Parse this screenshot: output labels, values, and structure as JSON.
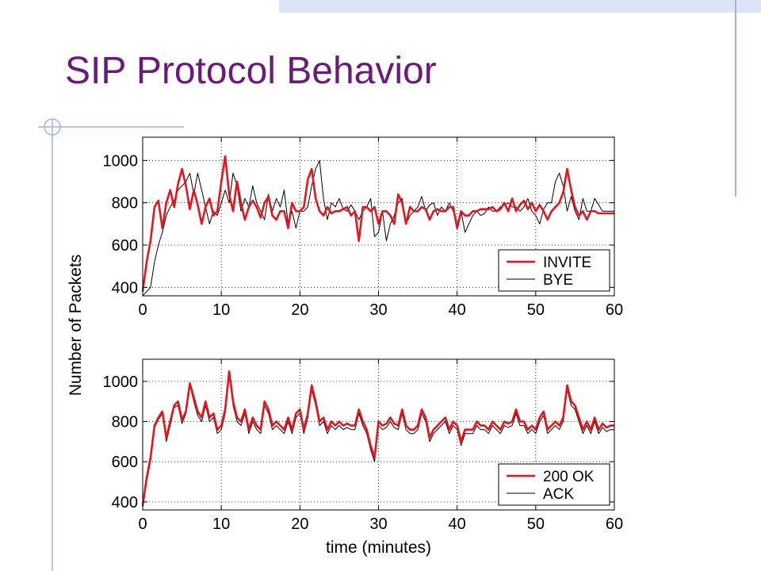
{
  "slide": {
    "title": "SIP Protocol Behavior",
    "colors": {
      "title": "#6b1a7a",
      "decor_bar": "#dde4f6",
      "decor_line": "#9fb4e6"
    }
  },
  "chart_data": [
    {
      "type": "line",
      "xlabel": "",
      "ylabel": "Number of Packets",
      "xlim": [
        0,
        60
      ],
      "ylim": [
        360,
        1110
      ],
      "xticks": [
        0,
        10,
        20,
        30,
        40,
        50,
        60
      ],
      "yticks": [
        400,
        600,
        800,
        1000
      ],
      "grid": true,
      "legend_position": "bottom-right",
      "series": [
        {
          "name": "INVITE",
          "color": "#e8141c",
          "x": [
            0,
            0.5,
            1,
            1.5,
            2,
            2.5,
            3,
            3.5,
            4,
            4.5,
            5,
            5.5,
            6,
            6.5,
            7,
            7.5,
            8,
            8.5,
            9,
            9.5,
            10,
            10.5,
            11,
            11.5,
            12,
            12.5,
            13,
            13.5,
            14,
            14.5,
            15,
            15.5,
            16,
            16.5,
            17,
            17.5,
            18,
            18.5,
            19,
            19.5,
            20,
            20.5,
            21,
            21.5,
            22,
            22.5,
            23,
            23.5,
            24,
            24.5,
            25,
            25.5,
            26,
            26.5,
            27,
            27.5,
            28,
            28.5,
            29,
            29.5,
            30,
            30.5,
            31,
            31.5,
            32,
            32.5,
            33,
            33.5,
            34,
            34.5,
            35,
            35.5,
            36,
            36.5,
            37,
            37.5,
            38,
            38.5,
            39,
            39.5,
            40,
            40.5,
            41,
            41.5,
            42,
            42.5,
            43,
            43.5,
            44,
            44.5,
            45,
            45.5,
            46,
            46.5,
            47,
            47.5,
            48,
            48.5,
            49,
            49.5,
            50,
            50.5,
            51,
            51.5,
            52,
            52.5,
            53,
            53.5,
            54,
            54.5,
            55,
            55.5,
            56,
            56.5,
            57,
            57.5,
            58,
            58.5,
            59,
            59.5,
            60
          ],
          "y": [
            380,
            520,
            620,
            780,
            810,
            680,
            800,
            860,
            780,
            890,
            960,
            880,
            770,
            860,
            790,
            700,
            780,
            820,
            740,
            760,
            900,
            1020,
            840,
            760,
            900,
            800,
            720,
            780,
            810,
            780,
            730,
            800,
            830,
            740,
            720,
            760,
            760,
            680,
            800,
            760,
            760,
            780,
            910,
            960,
            820,
            760,
            740,
            780,
            750,
            760,
            760,
            770,
            780,
            740,
            760,
            620,
            780,
            780,
            760,
            780,
            700,
            760,
            760,
            740,
            700,
            840,
            800,
            700,
            780,
            760,
            760,
            780,
            770,
            720,
            760,
            770,
            760,
            760,
            780,
            780,
            680,
            760,
            740,
            740,
            760,
            760,
            770,
            770,
            770,
            780,
            760,
            770,
            800,
            760,
            820,
            760,
            790,
            810,
            770,
            800,
            760,
            790,
            760,
            720,
            760,
            780,
            800,
            850,
            960,
            860,
            780,
            740,
            760,
            720,
            760,
            760,
            750,
            750,
            750,
            750,
            750
          ]
        },
        {
          "name": "BYE",
          "color": "#000000",
          "x": [
            0,
            0.5,
            1,
            1.5,
            2,
            2.5,
            3,
            3.5,
            4,
            4.5,
            5,
            5.5,
            6,
            6.5,
            7,
            7.5,
            8,
            8.5,
            9,
            9.5,
            10,
            10.5,
            11,
            11.5,
            12,
            12.5,
            13,
            13.5,
            14,
            14.5,
            15,
            15.5,
            16,
            16.5,
            17,
            17.5,
            18,
            18.5,
            19,
            19.5,
            20,
            20.5,
            21,
            21.5,
            22,
            22.5,
            23,
            23.5,
            24,
            24.5,
            25,
            25.5,
            26,
            26.5,
            27,
            27.5,
            28,
            28.5,
            29,
            29.5,
            30,
            30.5,
            31,
            31.5,
            32,
            32.5,
            33,
            33.5,
            34,
            34.5,
            35,
            35.5,
            36,
            36.5,
            37,
            37.5,
            38,
            38.5,
            39,
            39.5,
            40,
            40.5,
            41,
            41.5,
            42,
            42.5,
            43,
            43.5,
            44,
            44.5,
            45,
            45.5,
            46,
            46.5,
            47,
            47.5,
            48,
            48.5,
            49,
            49.5,
            50,
            50.5,
            51,
            51.5,
            52,
            52.5,
            53,
            53.5,
            54,
            54.5,
            55,
            55.5,
            56,
            56.5,
            57,
            57.5,
            58,
            58.5,
            59,
            59.5,
            60
          ],
          "y": [
            360,
            380,
            400,
            520,
            600,
            660,
            740,
            780,
            810,
            860,
            880,
            900,
            940,
            840,
            940,
            860,
            780,
            700,
            760,
            740,
            800,
            860,
            800,
            940,
            880,
            760,
            820,
            780,
            880,
            800,
            760,
            720,
            840,
            760,
            820,
            780,
            860,
            700,
            760,
            680,
            760,
            760,
            780,
            880,
            960,
            1000,
            820,
            720,
            800,
            780,
            820,
            770,
            760,
            790,
            760,
            720,
            760,
            780,
            820,
            640,
            660,
            760,
            620,
            700,
            740,
            800,
            820,
            700,
            740,
            760,
            780,
            830,
            760,
            790,
            800,
            740,
            780,
            760,
            800,
            760,
            700,
            760,
            660,
            700,
            740,
            760,
            740,
            750,
            780,
            760,
            760,
            780,
            790,
            800,
            780,
            780,
            760,
            780,
            820,
            760,
            740,
            700,
            770,
            800,
            800,
            900,
            940,
            880,
            760,
            830,
            760,
            720,
            820,
            760,
            760,
            820,
            790,
            760,
            760,
            760,
            760
          ]
        }
      ]
    },
    {
      "type": "line",
      "xlabel": "time (minutes)",
      "ylabel": "",
      "xlim": [
        0,
        60
      ],
      "ylim": [
        360,
        1110
      ],
      "xticks": [
        0,
        10,
        20,
        30,
        40,
        50,
        60
      ],
      "yticks": [
        400,
        600,
        800,
        1000
      ],
      "grid": true,
      "legend_position": "bottom-right",
      "series": [
        {
          "name": "200 OK",
          "color": "#e8141c",
          "x": [
            0,
            0.5,
            1,
            1.5,
            2,
            2.5,
            3,
            3.5,
            4,
            4.5,
            5,
            5.5,
            6,
            6.5,
            7,
            7.5,
            8,
            8.5,
            9,
            9.5,
            10,
            10.5,
            11,
            11.5,
            12,
            12.5,
            13,
            13.5,
            14,
            14.5,
            15,
            15.5,
            16,
            16.5,
            17,
            17.5,
            18,
            18.5,
            19,
            19.5,
            20,
            20.5,
            21,
            21.5,
            22,
            22.5,
            23,
            23.5,
            24,
            24.5,
            25,
            25.5,
            26,
            26.5,
            27,
            27.5,
            28,
            28.5,
            29,
            29.5,
            30,
            30.5,
            31,
            31.5,
            32,
            32.5,
            33,
            33.5,
            34,
            34.5,
            35,
            35.5,
            36,
            36.5,
            37,
            37.5,
            38,
            38.5,
            39,
            39.5,
            40,
            40.5,
            41,
            41.5,
            42,
            42.5,
            43,
            43.5,
            44,
            44.5,
            45,
            45.5,
            46,
            46.5,
            47,
            47.5,
            48,
            48.5,
            49,
            49.5,
            50,
            50.5,
            51,
            51.5,
            52,
            52.5,
            53,
            53.5,
            54,
            54.5,
            55,
            55.5,
            56,
            56.5,
            57,
            57.5,
            58,
            58.5,
            59,
            59.5,
            60
          ],
          "y": [
            380,
            520,
            620,
            780,
            820,
            850,
            720,
            800,
            880,
            900,
            810,
            850,
            990,
            920,
            850,
            820,
            900,
            820,
            840,
            760,
            780,
            860,
            1050,
            900,
            820,
            800,
            860,
            760,
            820,
            780,
            760,
            900,
            860,
            780,
            800,
            780,
            760,
            820,
            760,
            840,
            860,
            760,
            840,
            980,
            900,
            800,
            820,
            760,
            800,
            780,
            800,
            780,
            790,
            780,
            780,
            860,
            800,
            760,
            680,
            620,
            800,
            780,
            790,
            820,
            790,
            780,
            860,
            780,
            760,
            760,
            780,
            860,
            820,
            720,
            760,
            780,
            800,
            820,
            760,
            800,
            780,
            700,
            760,
            760,
            760,
            800,
            780,
            780,
            760,
            800,
            780,
            760,
            800,
            790,
            800,
            860,
            800,
            800,
            760,
            780,
            760,
            820,
            850,
            760,
            780,
            800,
            780,
            820,
            980,
            900,
            880,
            820,
            760,
            800,
            760,
            820,
            760,
            790,
            770,
            780,
            780
          ]
        },
        {
          "name": "ACK",
          "color": "#000000",
          "x": [
            0,
            0.5,
            1,
            1.5,
            2,
            2.5,
            3,
            3.5,
            4,
            4.5,
            5,
            5.5,
            6,
            6.5,
            7,
            7.5,
            8,
            8.5,
            9,
            9.5,
            10,
            10.5,
            11,
            11.5,
            12,
            12.5,
            13,
            13.5,
            14,
            14.5,
            15,
            15.5,
            16,
            16.5,
            17,
            17.5,
            18,
            18.5,
            19,
            19.5,
            20,
            20.5,
            21,
            21.5,
            22,
            22.5,
            23,
            23.5,
            24,
            24.5,
            25,
            25.5,
            26,
            26.5,
            27,
            27.5,
            28,
            28.5,
            29,
            29.5,
            30,
            30.5,
            31,
            31.5,
            32,
            32.5,
            33,
            33.5,
            34,
            34.5,
            35,
            35.5,
            36,
            36.5,
            37,
            37.5,
            38,
            38.5,
            39,
            39.5,
            40,
            40.5,
            41,
            41.5,
            42,
            42.5,
            43,
            43.5,
            44,
            44.5,
            45,
            45.5,
            46,
            46.5,
            47,
            47.5,
            48,
            48.5,
            49,
            49.5,
            50,
            50.5,
            51,
            51.5,
            52,
            52.5,
            53,
            53.5,
            54,
            54.5,
            55,
            55.5,
            56,
            56.5,
            57,
            57.5,
            58,
            58.5,
            59,
            59.5,
            60
          ],
          "y": [
            370,
            500,
            600,
            770,
            810,
            840,
            700,
            780,
            870,
            880,
            790,
            840,
            980,
            900,
            830,
            800,
            880,
            800,
            820,
            740,
            760,
            840,
            1040,
            880,
            800,
            780,
            840,
            740,
            800,
            760,
            740,
            880,
            840,
            760,
            780,
            760,
            740,
            800,
            740,
            820,
            840,
            740,
            820,
            960,
            880,
            780,
            800,
            740,
            780,
            760,
            780,
            760,
            770,
            760,
            760,
            840,
            780,
            740,
            660,
            600,
            780,
            760,
            770,
            800,
            770,
            760,
            840,
            760,
            740,
            740,
            760,
            840,
            800,
            700,
            740,
            760,
            780,
            800,
            740,
            780,
            760,
            680,
            740,
            740,
            740,
            780,
            760,
            760,
            740,
            780,
            760,
            740,
            780,
            770,
            780,
            840,
            780,
            780,
            740,
            760,
            740,
            800,
            830,
            740,
            760,
            780,
            760,
            800,
            960,
            880,
            860,
            800,
            740,
            780,
            740,
            800,
            740,
            770,
            750,
            760,
            760
          ]
        }
      ]
    }
  ]
}
